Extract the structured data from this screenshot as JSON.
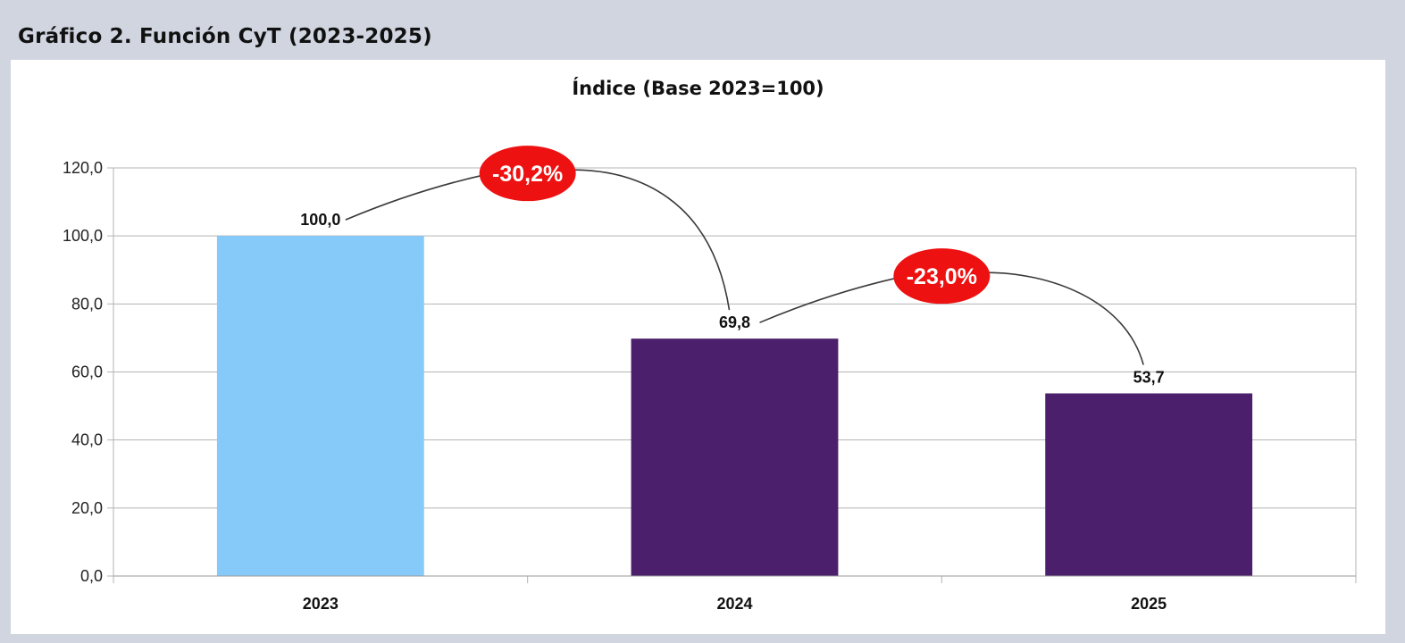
{
  "figure_title": "Gráfico 2. Función CyT (2023-2025)",
  "colors": {
    "bar_2023": "#85caf9",
    "bar_other": "#4b1f6b",
    "change_badge": "#ee1111",
    "grid": "#b3b3b3"
  },
  "chart_data": {
    "type": "bar",
    "title": "Índice (Base 2023=100)",
    "xlabel": "",
    "ylabel": "",
    "categories": [
      "2023",
      "2024",
      "2025"
    ],
    "values": [
      100.0,
      69.8,
      53.7
    ],
    "value_labels": [
      "100,0",
      "69,8",
      "53,7"
    ],
    "ylim": [
      0,
      120
    ],
    "yticks": [
      0,
      20,
      40,
      60,
      80,
      100,
      120
    ],
    "ytick_labels": [
      "0,0",
      "20,0",
      "40,0",
      "60,0",
      "80,0",
      "100,0",
      "120,0"
    ],
    "grid": true,
    "legend": "none",
    "annotations": [
      {
        "from": "2023",
        "to": "2024",
        "text": "-30,2%"
      },
      {
        "from": "2024",
        "to": "2025",
        "text": "-23,0%"
      }
    ]
  }
}
